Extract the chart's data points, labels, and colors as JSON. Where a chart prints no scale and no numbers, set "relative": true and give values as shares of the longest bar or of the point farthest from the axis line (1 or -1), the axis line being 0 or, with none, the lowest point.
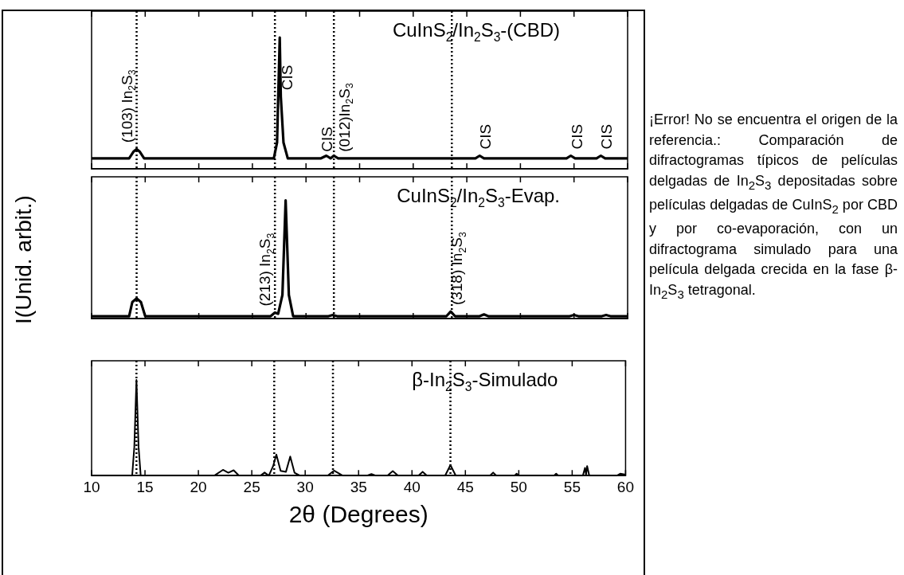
{
  "chart_data": [
    {
      "type": "line",
      "title": "CuInS$_{2}$/In$_{2}$S$_{3}$-(CBD)",
      "relative": true,
      "tick_labels": false,
      "xlim": [
        10,
        60
      ],
      "xticks": [
        10,
        15,
        20,
        25,
        30,
        35,
        40,
        45,
        50,
        55,
        60
      ],
      "grid": false,
      "legend": false,
      "marker": "none",
      "line_style": "solid",
      "series": [
        {
          "color": "#000000",
          "x": [
            10,
            13.5,
            13.9,
            14.2,
            14.5,
            14.9,
            27.0,
            27.3,
            27.55,
            27.65,
            27.9,
            28.3,
            31.4,
            31.9,
            32.3,
            32.6,
            33.0,
            45.8,
            46.2,
            46.6,
            54.3,
            54.7,
            55.1,
            57.1,
            57.5,
            57.9,
            60
          ],
          "values": [
            0.08,
            0.08,
            0.13,
            0.15,
            0.13,
            0.08,
            0.08,
            0.2,
            1.0,
            0.55,
            0.2,
            0.08,
            0.08,
            0.1,
            0.08,
            0.1,
            0.08,
            0.08,
            0.1,
            0.08,
            0.08,
            0.1,
            0.08,
            0.08,
            0.1,
            0.08,
            0.08
          ]
        }
      ],
      "ref_lines": [
        {
          "axis": "x",
          "value": 14.2,
          "line_style": "dotted"
        },
        {
          "axis": "x",
          "value": 27.1,
          "line_style": "dotted"
        },
        {
          "axis": "x",
          "value": 32.6,
          "line_style": "dotted"
        },
        {
          "axis": "x",
          "value": 43.6,
          "line_style": "dotted"
        }
      ],
      "annotations": [
        {
          "text": "(103) In$_{2}$S$_{3}$",
          "x": 14.2,
          "y": 0.15
        },
        {
          "text": "CIS",
          "x": 27.65,
          "y": 0.55
        },
        {
          "text": "CIS",
          "x": 31.4,
          "y": 0.08
        },
        {
          "text": "(012)In$_{2}$S$_{3}$",
          "x": 33.0,
          "y": 0.08
        },
        {
          "text": "CIS",
          "x": 46.2,
          "y": 0.1
        },
        {
          "text": "CIS",
          "x": 54.7,
          "y": 0.1
        },
        {
          "text": "CIS",
          "x": 57.5,
          "y": 0.1
        },
        "¡Error! No se encuentra el origen de la referencia.: Comparación de difractogramas típicos de películas delgadas de In$_{2}$S$_{3}$ depositadas sobre películas delgadas de CuInS$_{2}$ por CBD y por co-evaporación, con un difractograma simulado para una película delgada crecida en la fase β-In$_{2}$S$_{3}$ tetragonal."
      ]
    },
    {
      "type": "line",
      "title": "CuInS$_{2}$/In$_{2}$S$_{3}$-Evap.",
      "ylabel": "I(Unid. arbit.)",
      "relative": true,
      "tick_labels": false,
      "xlim": [
        10,
        60
      ],
      "xticks": [
        10,
        15,
        20,
        25,
        30,
        35,
        40,
        45,
        50,
        55,
        60
      ],
      "grid": false,
      "legend": false,
      "marker": "none",
      "line_style": "solid",
      "series": [
        {
          "color": "#000000",
          "x": [
            10,
            13.5,
            13.8,
            14.2,
            14.6,
            15.0,
            26.7,
            27.1,
            27.4,
            27.8,
            28.1,
            28.4,
            28.8,
            32.1,
            32.5,
            32.9,
            43.1,
            43.5,
            43.9,
            46.2,
            46.6,
            47.0,
            54.6,
            55.0,
            55.4,
            57.6,
            58.0,
            58.4,
            60
          ],
          "values": [
            0.02,
            0.02,
            0.14,
            0.17,
            0.14,
            0.02,
            0.02,
            0.05,
            0.04,
            0.2,
            1.0,
            0.2,
            0.02,
            0.02,
            0.03,
            0.02,
            0.02,
            0.06,
            0.02,
            0.02,
            0.035,
            0.02,
            0.02,
            0.03,
            0.02,
            0.02,
            0.03,
            0.02,
            0.02
          ]
        }
      ],
      "ref_lines": [
        {
          "axis": "x",
          "value": 14.2,
          "line_style": "dotted"
        },
        {
          "axis": "x",
          "value": 27.1,
          "line_style": "dotted"
        },
        {
          "axis": "x",
          "value": 32.6,
          "line_style": "dotted"
        },
        {
          "axis": "x",
          "value": 43.6,
          "line_style": "dotted"
        }
      ],
      "annotations": [
        {
          "text": "(213) In$_{2}$S$_{3}$",
          "x": 27.1,
          "y": 0.05
        },
        {
          "text": "(318) In$_{2}$S$_{3}$",
          "x": 43.5,
          "y": 0.06
        }
      ]
    },
    {
      "type": "line",
      "title": "β-In$_{2}$S$_{3}$-Simulado",
      "xlabel": "2θ (Degrees)",
      "relative": true,
      "tick_labels": "x",
      "xlim": [
        10,
        60
      ],
      "xticks": [
        10,
        15,
        20,
        25,
        30,
        35,
        40,
        45,
        50,
        55,
        60
      ],
      "grid": false,
      "legend": false,
      "marker": "none",
      "line_style": "solid",
      "series": [
        {
          "color": "#000000",
          "x": [
            10,
            13.8,
            14.0,
            14.2,
            14.4,
            14.6,
            21.5,
            22.3,
            22.8,
            23.3,
            23.8,
            25.8,
            26.2,
            26.6,
            27.0,
            27.3,
            27.7,
            28.2,
            28.6,
            29.0,
            29.5,
            32.1,
            32.7,
            33.5,
            35.8,
            36.2,
            36.6,
            37.7,
            38.2,
            38.7,
            40.6,
            41.0,
            41.4,
            43.1,
            43.6,
            44.1,
            47.3,
            47.6,
            47.9,
            49.6,
            49.8,
            50.0,
            53.3,
            53.5,
            53.7,
            56.0,
            56.2,
            56.3,
            56.4,
            56.6,
            59.2,
            59.5,
            60
          ],
          "values": [
            0,
            0,
            0.3,
            1.0,
            0.3,
            0,
            0,
            0.06,
            0.03,
            0.056,
            0,
            0,
            0.032,
            0,
            0.1,
            0.22,
            0.05,
            0.04,
            0.2,
            0.03,
            0,
            0,
            0.052,
            0,
            0,
            0.016,
            0,
            0,
            0.048,
            0,
            0,
            0.04,
            0,
            0,
            0.11,
            0,
            0,
            0.032,
            0,
            0,
            0.02,
            0,
            0,
            0.02,
            0,
            0,
            0.08,
            0.01,
            0.1,
            0,
            0,
            0.02,
            0.01
          ]
        }
      ],
      "ref_lines": [
        {
          "axis": "x",
          "value": 14.2,
          "line_style": "dotted"
        },
        {
          "axis": "x",
          "value": 27.1,
          "line_style": "dotted"
        },
        {
          "axis": "x",
          "value": 32.6,
          "line_style": "dotted"
        },
        {
          "axis": "x",
          "value": 43.6,
          "line_style": "dotted"
        }
      ]
    }
  ]
}
